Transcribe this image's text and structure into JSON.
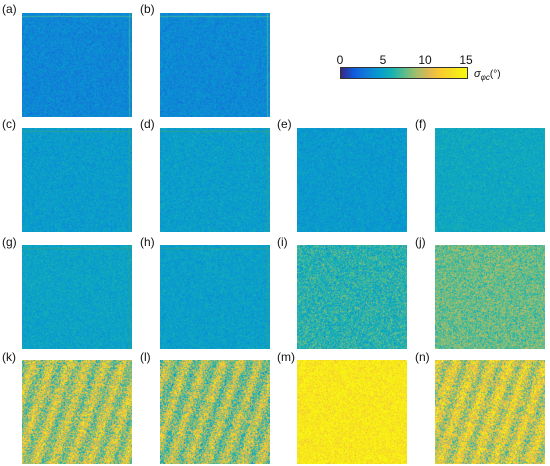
{
  "figure": {
    "panels": [
      {
        "id": "a",
        "label": "(a)",
        "sigma": 3.5,
        "variation": "low",
        "frame_tint": "#3bb0a4"
      },
      {
        "id": "b",
        "label": "(b)",
        "sigma": 3.6,
        "variation": "low",
        "frame_tint": "#3bb0a4"
      },
      {
        "id": "c",
        "label": "(c)",
        "sigma": 4.6,
        "variation": "low",
        "frame_tint": "#2aa198"
      },
      {
        "id": "d",
        "label": "(d)",
        "sigma": 4.7,
        "variation": "low",
        "frame_tint": "#2aa198"
      },
      {
        "id": "e",
        "label": "(e)",
        "sigma": 4.5,
        "variation": "low",
        "frame_tint": ""
      },
      {
        "id": "f",
        "label": "(f)",
        "sigma": 5.3,
        "variation": "low",
        "frame_tint": ""
      },
      {
        "id": "g",
        "label": "(g)",
        "sigma": 5.0,
        "variation": "low",
        "frame_tint": "#2aa198"
      },
      {
        "id": "h",
        "label": "(h)",
        "sigma": 4.8,
        "variation": "low",
        "frame_tint": "#2aa198"
      },
      {
        "id": "i",
        "label": "(i)",
        "sigma": 6.2,
        "variation": "medium",
        "frame_tint": ""
      },
      {
        "id": "j",
        "label": "(j)",
        "sigma": 7.8,
        "variation": "medium",
        "frame_tint": ""
      },
      {
        "id": "k",
        "label": "(k)",
        "sigma": 9.5,
        "variation": "high",
        "frame_tint": ""
      },
      {
        "id": "l",
        "label": "(l)",
        "sigma": 9.0,
        "variation": "high",
        "frame_tint": ""
      },
      {
        "id": "m",
        "label": "(m)",
        "sigma": 13.8,
        "variation": "medium",
        "frame_tint": ""
      },
      {
        "id": "n",
        "label": "(n)",
        "sigma": 10.5,
        "variation": "high",
        "frame_tint": ""
      }
    ],
    "colorbar": {
      "ticks": [
        "0",
        "5",
        "10",
        "15"
      ],
      "range": [
        0,
        15
      ],
      "label_symbol": "σ",
      "label_sub": "φc",
      "label_unit": "(°)",
      "colormap": "parula"
    }
  },
  "chart_data": {
    "type": "heatmap",
    "description_values": "mean sigma_phi_c per panel (degrees)",
    "categories": [
      "(a)",
      "(b)",
      "(c)",
      "(d)",
      "(e)",
      "(f)",
      "(g)",
      "(h)",
      "(i)",
      "(j)",
      "(k)",
      "(l)",
      "(m)",
      "(n)"
    ],
    "values": [
      3.5,
      3.6,
      4.6,
      4.7,
      4.5,
      5.3,
      5.0,
      4.8,
      6.2,
      7.8,
      9.5,
      9.0,
      13.8,
      10.5
    ],
    "colorbar_range": [
      0,
      15
    ],
    "colorbar_ticks": [
      0,
      5,
      10,
      15
    ],
    "colorbar_label": "σφc(°)"
  }
}
